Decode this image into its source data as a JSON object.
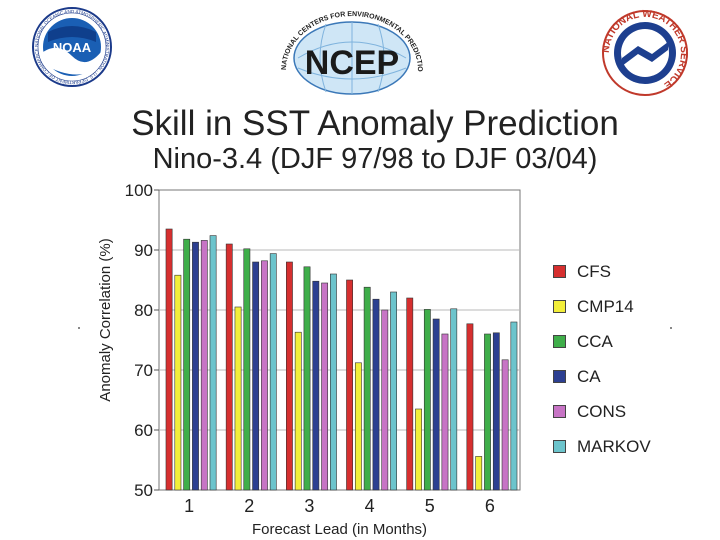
{
  "logos": {
    "left": {
      "center_text": "NOAA",
      "ring_text": "NATIONAL OCEANIC AND ATMOSPHERIC ADMINISTRATION · U.S. DEPARTMENT OF COMMERCE ·"
    },
    "center": {
      "center_text": "NCEP",
      "ring_text": "NATIONAL CENTERS FOR ENVIRONMENTAL PREDICTION"
    },
    "right": {
      "ring_text": "NATIONAL WEATHER SERVICE"
    }
  },
  "colors": {
    "CFS": "#d62f2f",
    "CMP14": "#f2ee3a",
    "CCA": "#3fae4a",
    "CA": "#2c3f91",
    "CONS": "#c774c5",
    "MARKOV": "#6cc4cc",
    "plot_bg": "#ffffff",
    "grid": "#b9b9b9"
  },
  "chart_data": {
    "type": "bar",
    "title": "Skill in SST Anomaly Prediction",
    "subtitle": "Nino-3.4 (DJF 97/98 to DJF 03/04)",
    "xlabel": "Forecast Lead (in Months)",
    "ylabel": "Anomaly Correlation (%)",
    "ylim": [
      50,
      100
    ],
    "yticks": [
      "50",
      "60",
      "70",
      "80",
      "90",
      "100"
    ],
    "categories": [
      "1",
      "2",
      "3",
      "4",
      "5",
      "6"
    ],
    "grid": true,
    "legend_position": "right",
    "series": [
      {
        "name": "CFS",
        "values": [
          93.5,
          91.0,
          88.0,
          85.0,
          82.0,
          77.7
        ]
      },
      {
        "name": "CMP14",
        "values": [
          85.8,
          80.5,
          76.3,
          71.2,
          63.5,
          55.6
        ]
      },
      {
        "name": "CCA",
        "values": [
          91.8,
          90.2,
          87.2,
          83.8,
          80.1,
          76.0
        ]
      },
      {
        "name": "CA",
        "values": [
          91.3,
          88.0,
          84.8,
          81.8,
          78.5,
          76.2
        ]
      },
      {
        "name": "CONS",
        "values": [
          91.6,
          88.2,
          84.5,
          80.0,
          76.0,
          71.7
        ]
      },
      {
        "name": "MARKOV",
        "values": [
          92.4,
          89.4,
          86.0,
          83.0,
          80.2,
          78.0
        ]
      }
    ]
  }
}
